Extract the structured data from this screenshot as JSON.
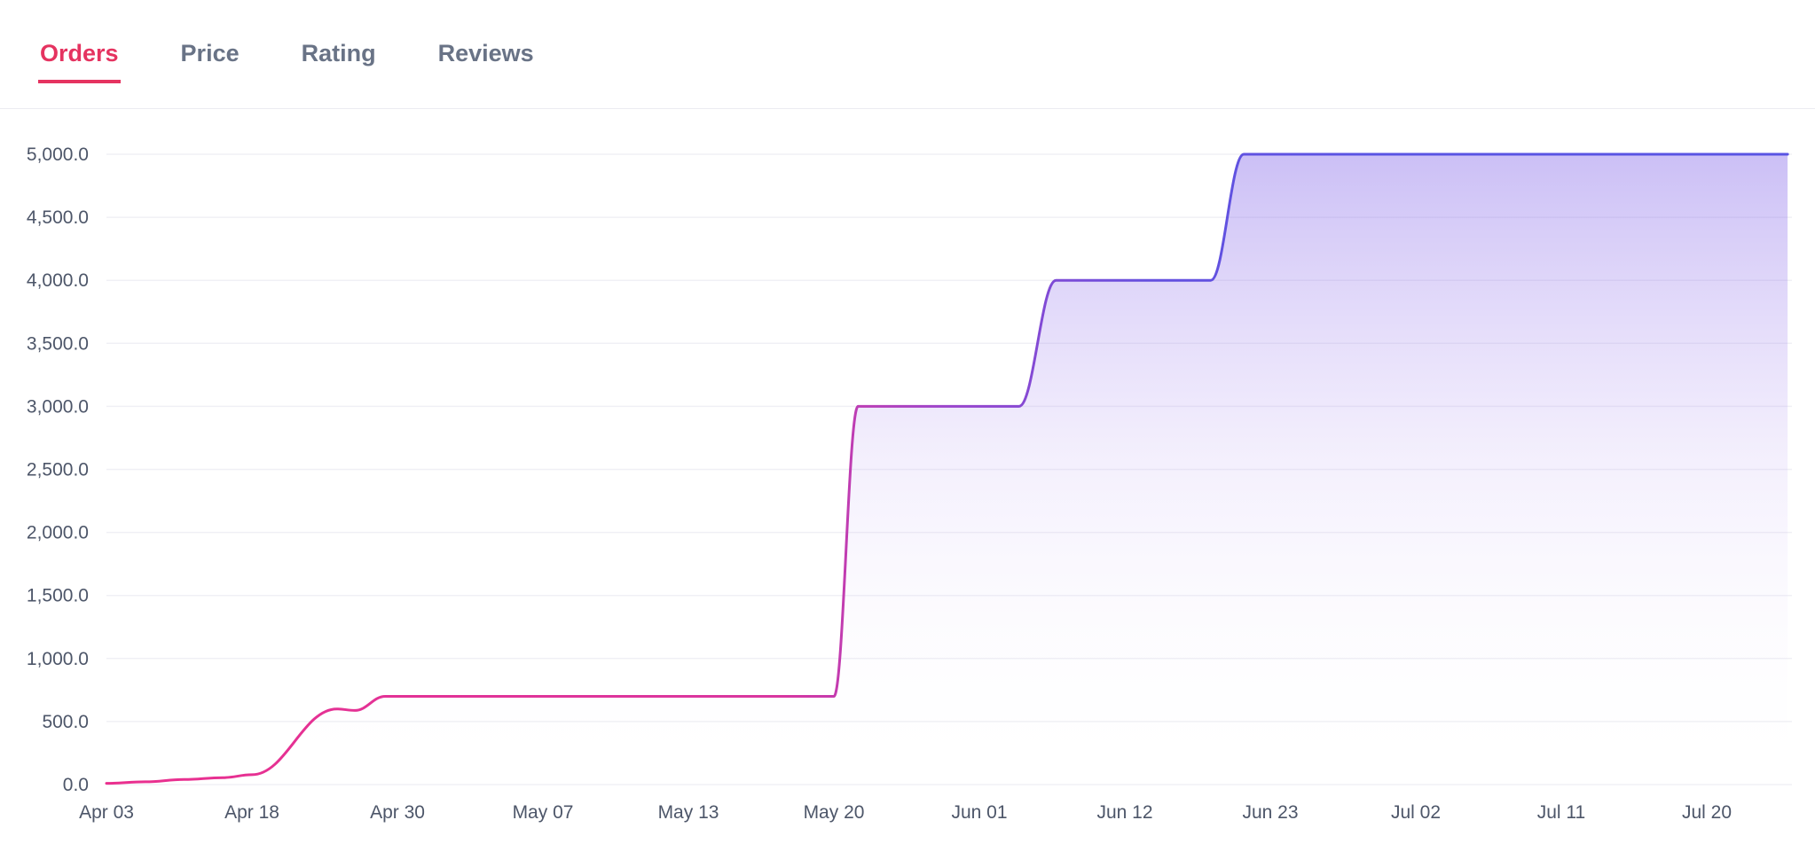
{
  "tabs": [
    {
      "label": "Orders",
      "active": true
    },
    {
      "label": "Price",
      "active": false
    },
    {
      "label": "Rating",
      "active": false
    },
    {
      "label": "Reviews",
      "active": false
    }
  ],
  "chart_data": {
    "type": "area",
    "title": "Orders",
    "xlabel": "",
    "ylabel": "",
    "ylim": [
      0,
      5000
    ],
    "grid": "horizontal",
    "legend": "none",
    "series": [
      {
        "name": "Orders",
        "points": [
          {
            "day": 0,
            "value": 10
          },
          {
            "day": 4,
            "value": 22
          },
          {
            "day": 8,
            "value": 40
          },
          {
            "day": 12,
            "value": 55
          },
          {
            "day": 15,
            "value": 78
          },
          {
            "day": 22,
            "value": 600
          },
          {
            "day": 23.5,
            "value": 588
          },
          {
            "day": 26,
            "value": 700
          },
          {
            "day": 47,
            "value": 700
          },
          {
            "day": 49,
            "value": 3000
          },
          {
            "day": 62,
            "value": 3000
          },
          {
            "day": 64.8,
            "value": 4000
          },
          {
            "day": 76.5,
            "value": 4000
          },
          {
            "day": 79,
            "value": 5000
          },
          {
            "day": 113,
            "value": 5000
          }
        ]
      }
    ],
    "x_ticks": [
      {
        "label": "Apr 03",
        "day": 0
      },
      {
        "label": "Apr 18",
        "day": 15
      },
      {
        "label": "Apr 30",
        "day": 27
      },
      {
        "label": "May 07",
        "day": 34
      },
      {
        "label": "May 13",
        "day": 40
      },
      {
        "label": "May 20",
        "day": 47
      },
      {
        "label": "Jun 01",
        "day": 59
      },
      {
        "label": "Jun 12",
        "day": 70
      },
      {
        "label": "Jun 23",
        "day": 81
      },
      {
        "label": "Jul 02",
        "day": 90
      },
      {
        "label": "Jul 11",
        "day": 99
      },
      {
        "label": "Jul 20",
        "day": 108
      }
    ],
    "y_ticks": [
      {
        "value": 0,
        "label": "0.0"
      },
      {
        "value": 500,
        "label": "500.0"
      },
      {
        "value": 1000,
        "label": "1,000.0"
      },
      {
        "value": 1500,
        "label": "1,500.0"
      },
      {
        "value": 2000,
        "label": "2,000.0"
      },
      {
        "value": 2500,
        "label": "2,500.0"
      },
      {
        "value": 3000,
        "label": "3,000.0"
      },
      {
        "value": 3500,
        "label": "3,500.0"
      },
      {
        "value": 4000,
        "label": "4,000.0"
      },
      {
        "value": 4500,
        "label": "4,500.0"
      },
      {
        "value": 5000,
        "label": "5,000.0"
      }
    ],
    "colors": {
      "active_tab": "#e53360",
      "inactive_tab": "#697386",
      "grid": "#f0f0f5",
      "axis_text": "#4d5669",
      "line_gradient": [
        {
          "offset": 0,
          "color": "#ea2f8e"
        },
        {
          "offset": 0.4,
          "color": "#d936a0"
        },
        {
          "offset": 0.5,
          "color": "#9a45cc"
        },
        {
          "offset": 0.62,
          "color": "#6550df"
        },
        {
          "offset": 0.75,
          "color": "#5954e3"
        },
        {
          "offset": 1,
          "color": "#5954e3"
        }
      ],
      "area_gradient": [
        {
          "offset": 0,
          "color": "#7e60e8",
          "opacity": 0.4
        },
        {
          "offset": 0.5,
          "color": "#a887ee",
          "opacity": 0.12
        },
        {
          "offset": 1,
          "color": "#ffffff",
          "opacity": 0
        }
      ]
    }
  }
}
